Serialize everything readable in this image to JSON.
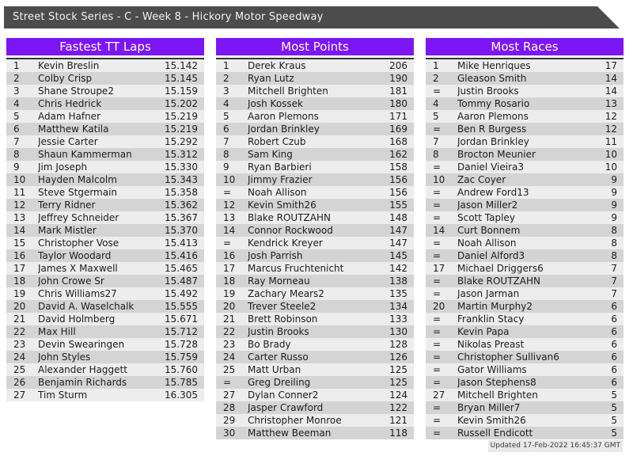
{
  "page_title": "Street Stock Series - C - Week 8 - Hickory Motor Speedway",
  "colors": {
    "accent": "#7c16f5",
    "topbar": "#4c4c4c",
    "row_light": "#ededed",
    "row_dark": "#d4d4d4"
  },
  "footer": {
    "updated": "Updated 17-Feb-2022 16:45:37 GMT"
  },
  "tables": [
    {
      "title": "Fastest TT Laps",
      "rows": [
        [
          "1",
          "Kevin Breslin",
          "15.142"
        ],
        [
          "2",
          "Colby Crisp",
          "15.145"
        ],
        [
          "3",
          "Shane Stroupe2",
          "15.159"
        ],
        [
          "4",
          "Chris Hedrick",
          "15.202"
        ],
        [
          "5",
          "Adam Hafner",
          "15.219"
        ],
        [
          "6",
          "Matthew Katila",
          "15.219"
        ],
        [
          "7",
          "Jessie Carter",
          "15.292"
        ],
        [
          "8",
          "Shaun Kammerman",
          "15.312"
        ],
        [
          "9",
          "Jim Joseph",
          "15.330"
        ],
        [
          "10",
          "Hayden Malcolm",
          "15.343"
        ],
        [
          "11",
          "Steve Stgermain",
          "15.358"
        ],
        [
          "12",
          "Terry Ridner",
          "15.362"
        ],
        [
          "13",
          "Jeffrey Schneider",
          "15.367"
        ],
        [
          "14",
          "Mark Mistler",
          "15.370"
        ],
        [
          "15",
          "Christopher Vose",
          "15.413"
        ],
        [
          "16",
          "Taylor Woodard",
          "15.416"
        ],
        [
          "17",
          "James X Maxwell",
          "15.465"
        ],
        [
          "18",
          "John Crowe Sr",
          "15.487"
        ],
        [
          "19",
          "Chris Williams27",
          "15.492"
        ],
        [
          "20",
          "David A. Waselchalk",
          "15.555"
        ],
        [
          "21",
          "David Holmberg",
          "15.671"
        ],
        [
          "22",
          "Max Hill",
          "15.712"
        ],
        [
          "23",
          "Devin Swearingen",
          "15.728"
        ],
        [
          "24",
          "John Styles",
          "15.759"
        ],
        [
          "25",
          "Alexander Haggett",
          "15.760"
        ],
        [
          "26",
          "Benjamin Richards",
          "15.785"
        ],
        [
          "27",
          "Tim Sturm",
          "16.305"
        ]
      ]
    },
    {
      "title": "Most Points",
      "rows": [
        [
          "1",
          "Derek Kraus",
          "206"
        ],
        [
          "2",
          "Ryan Lutz",
          "190"
        ],
        [
          "3",
          "Mitchell Brighten",
          "181"
        ],
        [
          "4",
          "Josh Kossek",
          "180"
        ],
        [
          "5",
          "Aaron Plemons",
          "171"
        ],
        [
          "6",
          "Jordan Brinkley",
          "169"
        ],
        [
          "7",
          "Robert Czub",
          "168"
        ],
        [
          "8",
          "Sam King",
          "162"
        ],
        [
          "9",
          "Ryan Barbieri",
          "158"
        ],
        [
          "10",
          "Jimmy Frazier",
          "156"
        ],
        [
          "=",
          "Noah Allison",
          "156"
        ],
        [
          "12",
          "Kevin Smith26",
          "155"
        ],
        [
          "13",
          "Blake ROUTZAHN",
          "148"
        ],
        [
          "14",
          "Connor Rockwood",
          "147"
        ],
        [
          "=",
          "Kendrick Kreyer",
          "147"
        ],
        [
          "16",
          "Josh Parrish",
          "145"
        ],
        [
          "17",
          "Marcus Fruchtenicht",
          "142"
        ],
        [
          "18",
          "Ray Morneau",
          "138"
        ],
        [
          "19",
          "Zachary Mears2",
          "135"
        ],
        [
          "20",
          "Trever Steele2",
          "134"
        ],
        [
          "21",
          "Brett Robinson",
          "133"
        ],
        [
          "22",
          "Justin Brooks",
          "130"
        ],
        [
          "23",
          "Bo Brady",
          "128"
        ],
        [
          "24",
          "Carter Russo",
          "126"
        ],
        [
          "25",
          "Matt Urban",
          "125"
        ],
        [
          "=",
          "Greg Dreiling",
          "125"
        ],
        [
          "27",
          "Dylan Conner2",
          "124"
        ],
        [
          "28",
          "Jasper Crawford",
          "122"
        ],
        [
          "29",
          "Christopher Monroe",
          "121"
        ],
        [
          "30",
          "Matthew Beeman",
          "118"
        ]
      ]
    },
    {
      "title": "Most Races",
      "rows": [
        [
          "1",
          "Mike Henriques",
          "17"
        ],
        [
          "2",
          "Gleason Smith",
          "14"
        ],
        [
          "=",
          "Justin Brooks",
          "14"
        ],
        [
          "4",
          "Tommy Rosario",
          "13"
        ],
        [
          "5",
          "Aaron Plemons",
          "12"
        ],
        [
          "=",
          "Ben R Burgess",
          "12"
        ],
        [
          "7",
          "Jordan Brinkley",
          "11"
        ],
        [
          "8",
          "Brocton Meunier",
          "10"
        ],
        [
          "=",
          "Daniel Vieira3",
          "10"
        ],
        [
          "10",
          "Zac Coyer",
          "9"
        ],
        [
          "=",
          "Andrew Ford13",
          "9"
        ],
        [
          "=",
          "Jason Miller2",
          "9"
        ],
        [
          "=",
          "Scott Tapley",
          "9"
        ],
        [
          "14",
          "Curt Bonnem",
          "8"
        ],
        [
          "=",
          "Noah Allison",
          "8"
        ],
        [
          "=",
          "Daniel Alford3",
          "8"
        ],
        [
          "17",
          "Michael Driggers6",
          "7"
        ],
        [
          "=",
          "Blake ROUTZAHN",
          "7"
        ],
        [
          "=",
          "Jason Jarman",
          "7"
        ],
        [
          "20",
          "Martin Murphy2",
          "6"
        ],
        [
          "=",
          "Franklin Stacy",
          "6"
        ],
        [
          "=",
          "Kevin Papa",
          "6"
        ],
        [
          "=",
          "Nikolas Preast",
          "6"
        ],
        [
          "=",
          "Christopher Sullivan6",
          "6"
        ],
        [
          "=",
          "Gator Williams",
          "6"
        ],
        [
          "=",
          "Jason Stephens8",
          "6"
        ],
        [
          "27",
          "Mitchell Brighten",
          "5"
        ],
        [
          "=",
          "Bryan Miller7",
          "5"
        ],
        [
          "=",
          "Kevin Smith26",
          "5"
        ],
        [
          "=",
          "Russell Endicott",
          "5"
        ]
      ]
    }
  ]
}
